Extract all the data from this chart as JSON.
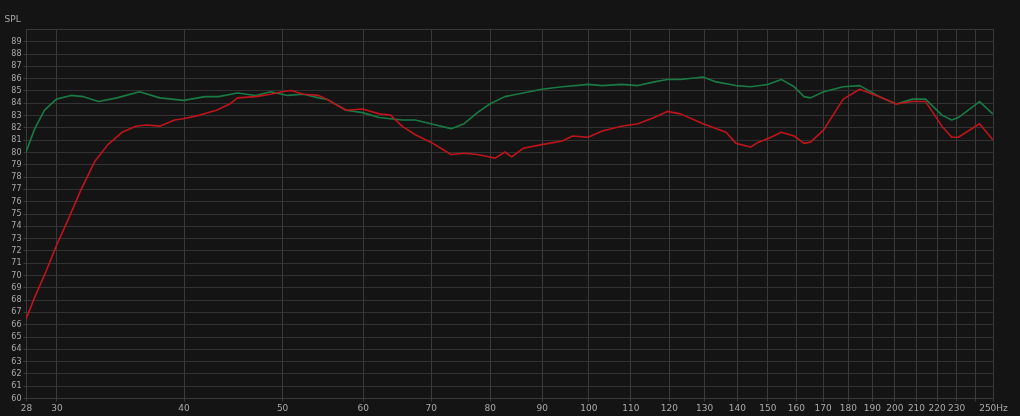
{
  "chart_data": {
    "type": "line",
    "ylabel": "SPL",
    "log": "x",
    "grid": true,
    "line_style": "solid",
    "xlim": [
      28,
      250
    ],
    "ylim": [
      60,
      90
    ],
    "xticks": [
      28,
      30,
      40,
      50,
      60,
      70,
      80,
      90,
      100,
      110,
      120,
      130,
      140,
      150,
      160,
      170,
      180,
      190,
      200,
      210,
      220,
      230,
      {
        "value": 240,
        "label": null
      },
      {
        "value": 250,
        "label": "250Hz"
      }
    ],
    "yticks": [
      60,
      61,
      62,
      63,
      64,
      65,
      66,
      67,
      68,
      69,
      70,
      71,
      72,
      73,
      74,
      75,
      76,
      77,
      78,
      79,
      80,
      81,
      82,
      83,
      84,
      85,
      86,
      87,
      88,
      89
    ],
    "series": [
      {
        "color": "#1a7a45",
        "x": [
          28,
          28.56,
          29.2,
          30,
          31.0,
          31.9,
          33.0,
          34.4,
          36.2,
          37.9,
          40,
          42.0,
          43.3,
          45.2,
          47.1,
          48.7,
          50,
          50.6,
          52.5,
          54.3,
          55.3,
          57.8,
          60,
          62.3,
          63.9,
          65.6,
          67.6,
          70,
          73.3,
          75.5,
          77.8,
          80,
          82.8,
          86.3,
          90,
          94.3,
          100,
          103.2,
          107.8,
          111.9,
          116.1,
          119.6,
          123.2,
          129.7,
          133.6,
          139.7,
          144.4,
          150.3,
          154.8,
          159.4,
          163.0,
          165.4,
          170.4,
          178.1,
          184.9,
          193.3,
          200.8,
          208.4,
          214.6,
          222.7,
          227.7,
          231.1,
          242.5,
          249.9
        ],
        "values": [
          80.0,
          81.9,
          83.4,
          84.3,
          84.6,
          84.5,
          84.1,
          84.4,
          84.9,
          84.4,
          84.2,
          84.5,
          84.5,
          84.8,
          84.6,
          84.9,
          84.7,
          84.6,
          84.7,
          84.4,
          84.3,
          83.4,
          83.2,
          82.8,
          82.7,
          82.6,
          82.6,
          82.3,
          81.9,
          82.3,
          83.2,
          83.9,
          84.5,
          84.8,
          85.1,
          85.3,
          85.5,
          85.4,
          85.5,
          85.4,
          85.7,
          85.9,
          85.9,
          86.1,
          85.7,
          85.4,
          85.3,
          85.5,
          85.9,
          85.3,
          84.5,
          84.4,
          84.9,
          85.3,
          85.4,
          84.5,
          83.9,
          84.3,
          84.3,
          83.0,
          82.6,
          82.8,
          84.1,
          83.1
        ]
      },
      {
        "color": "#c0141c",
        "x": [
          28,
          28.56,
          29.3,
          30,
          30.8,
          31.7,
          32.7,
          33.7,
          34.8,
          35.9,
          36.8,
          37.9,
          39.2,
          40,
          41.5,
          43.1,
          44.4,
          45.2,
          47.1,
          48.7,
          50,
          51.0,
          52.5,
          54.3,
          55.3,
          57.8,
          60,
          62.3,
          63.9,
          65.6,
          67.6,
          70,
          73.3,
          75.5,
          77.8,
          80,
          81.0,
          82.8,
          84.1,
          86.3,
          90,
          94.3,
          96.5,
          100,
          103.2,
          107.8,
          111.9,
          116.1,
          119.6,
          123.2,
          129.7,
          136.6,
          139.7,
          144.4,
          147.0,
          150.3,
          154.8,
          159.4,
          163.0,
          165.4,
          170.4,
          178.1,
          184.9,
          193.3,
          200.8,
          208.4,
          214.6,
          222.7,
          227.7,
          231.1,
          242.5,
          249.9
        ],
        "values": [
          66.4,
          68.2,
          70.3,
          72.4,
          74.5,
          76.9,
          79.2,
          80.6,
          81.6,
          82.1,
          82.2,
          82.1,
          82.6,
          82.7,
          83.0,
          83.4,
          83.9,
          84.4,
          84.5,
          84.7,
          84.9,
          85.0,
          84.7,
          84.6,
          84.3,
          83.4,
          83.5,
          83.1,
          83.0,
          82.1,
          81.4,
          80.8,
          79.8,
          79.9,
          79.8,
          79.6,
          79.5,
          80.0,
          79.6,
          80.3,
          80.6,
          80.9,
          81.3,
          81.2,
          81.7,
          82.1,
          82.3,
          82.8,
          83.3,
          83.1,
          82.3,
          81.6,
          80.7,
          80.4,
          80.8,
          81.1,
          81.6,
          81.3,
          80.7,
          80.8,
          81.8,
          84.3,
          85.1,
          84.5,
          83.9,
          84.1,
          84.1,
          82.1,
          81.2,
          81.2,
          82.3,
          81.0
        ]
      }
    ]
  }
}
